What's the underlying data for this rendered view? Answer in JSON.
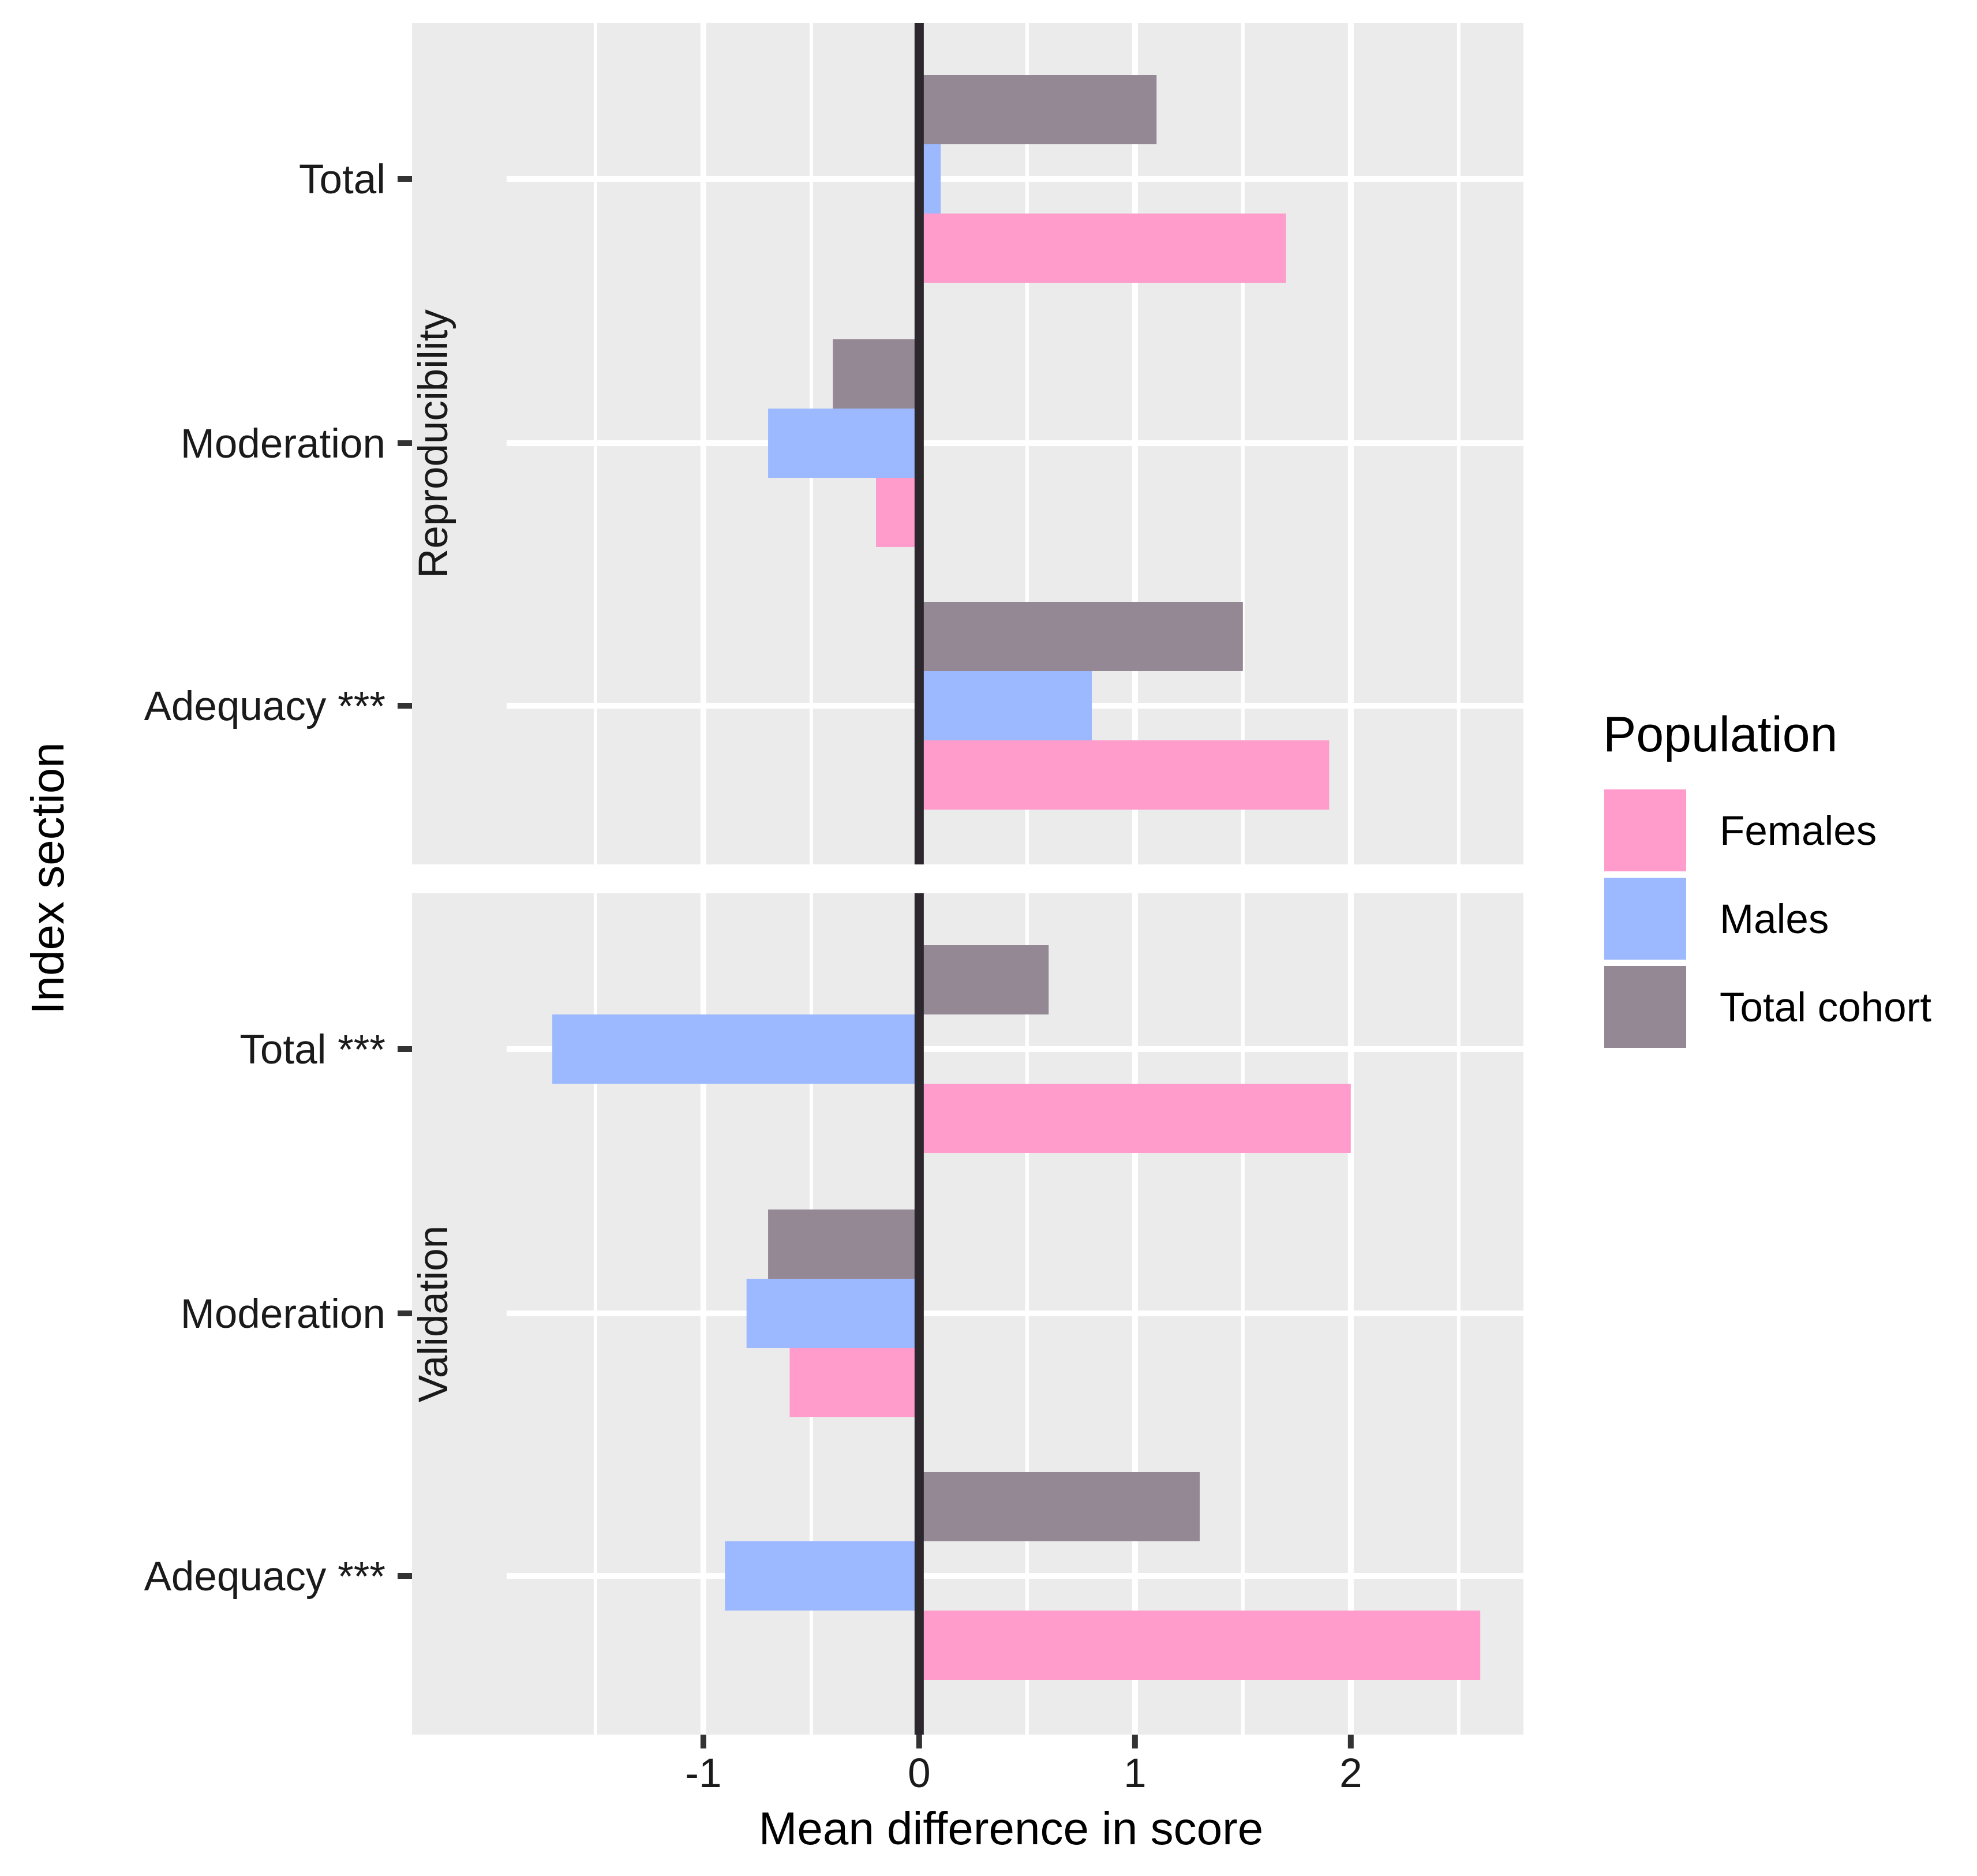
{
  "chart_data": {
    "type": "bar",
    "orientation": "horizontal",
    "xlabel": "Mean difference in score",
    "ylabel": "Index section",
    "xlim": [
      -2.35,
      2.8
    ],
    "x_ticks": [
      -1,
      0,
      1,
      2
    ],
    "x_tick_labels": [
      "-1",
      "0",
      "1",
      "2"
    ],
    "categories": [
      "Total",
      "Moderation",
      "Adequacy ***"
    ],
    "legend": {
      "title": "Population",
      "placement": "right",
      "items": [
        {
          "name": "Females",
          "color": "#FF9CCB"
        },
        {
          "name": "Males",
          "color": "#9CB8FF"
        },
        {
          "name": "Total cohort",
          "color": "#948894"
        }
      ]
    },
    "panels": [
      {
        "strip": "Reproducibility",
        "categories": [
          "Total",
          "Moderation",
          "Adequacy ***"
        ],
        "series": [
          {
            "name": "Total cohort",
            "values": [
              1.1,
              -0.4,
              1.5
            ]
          },
          {
            "name": "Males",
            "values": [
              0.1,
              -0.7,
              0.8
            ]
          },
          {
            "name": "Females",
            "values": [
              1.7,
              -0.2,
              1.9
            ]
          }
        ]
      },
      {
        "strip": "Validation",
        "categories": [
          "Total ***",
          "Moderation",
          "Adequacy ***"
        ],
        "series": [
          {
            "name": "Total cohort",
            "values": [
              0.6,
              -0.7,
              1.3
            ]
          },
          {
            "name": "Males",
            "values": [
              -1.7,
              -0.8,
              -0.9
            ]
          },
          {
            "name": "Females",
            "values": [
              2.0,
              -0.6,
              2.6
            ]
          }
        ]
      }
    ]
  }
}
